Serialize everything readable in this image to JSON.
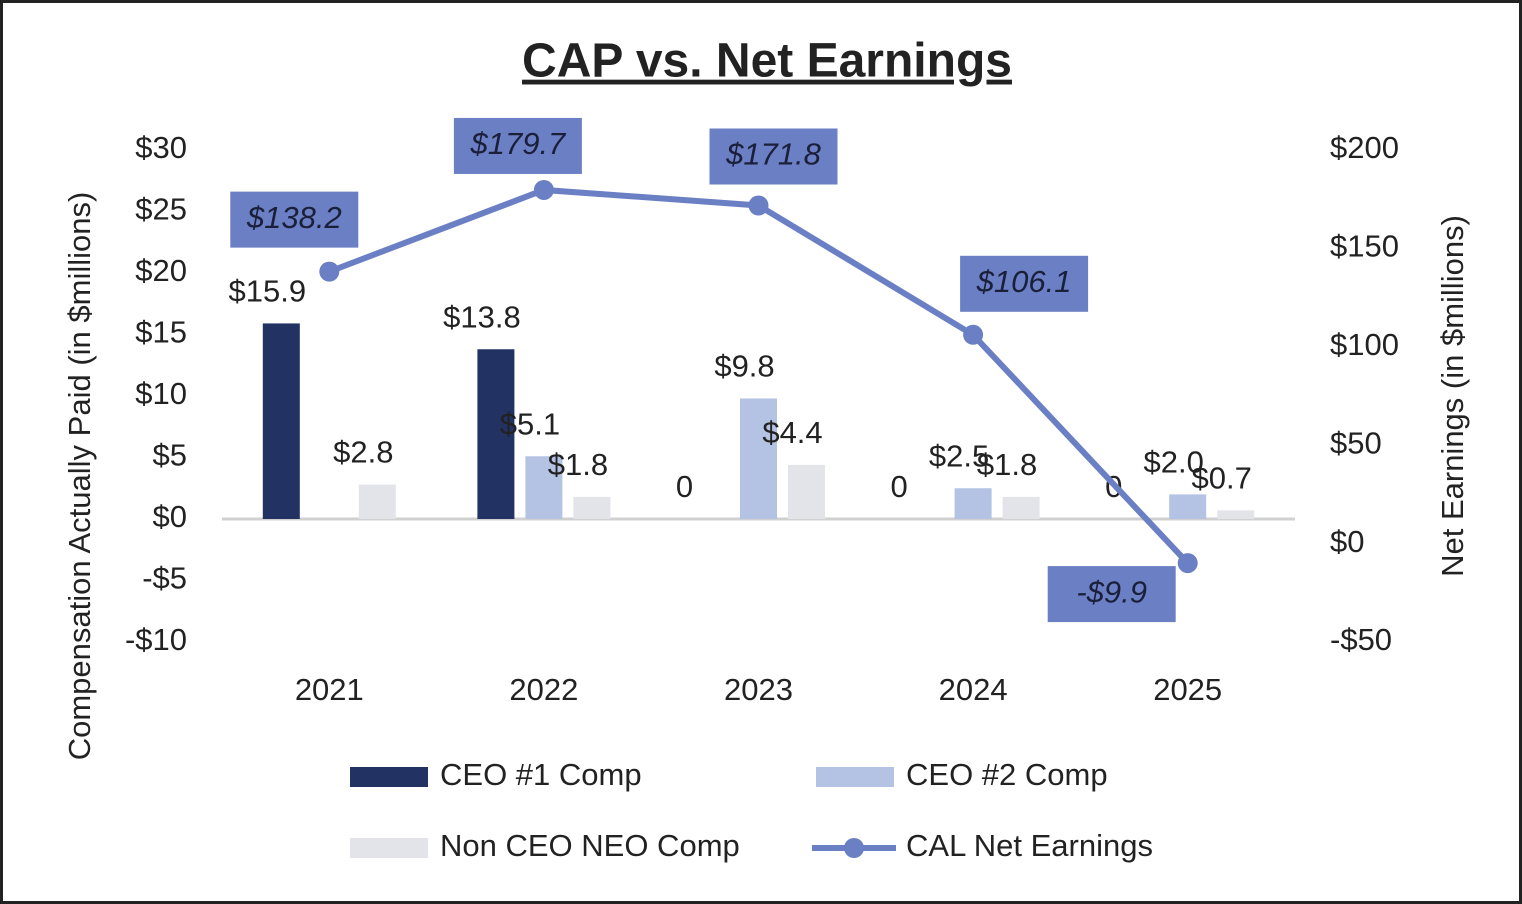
{
  "chart_data": {
    "type": "bar",
    "title": "CAP vs. Net Earnings",
    "y_label": "Compensation Actually Paid (in $millions)",
    "y2_label": "Net Earnings (in $millions)",
    "categories": [
      "2021",
      "2022",
      "2023",
      "2024",
      "2025"
    ],
    "ylim": [
      -10,
      30
    ],
    "yticks": [
      {
        "value": -10,
        "label": "-$10"
      },
      {
        "value": -5,
        "label": "-$5"
      },
      {
        "value": 0,
        "label": "$0"
      },
      {
        "value": 5,
        "label": "$5"
      },
      {
        "value": 10,
        "label": "$10"
      },
      {
        "value": 15,
        "label": "$15"
      },
      {
        "value": 20,
        "label": "$20"
      },
      {
        "value": 25,
        "label": "$25"
      },
      {
        "value": 30,
        "label": "$30"
      }
    ],
    "y2lim": [
      -50,
      200
    ],
    "y2ticks": [
      {
        "value": -50,
        "label": "-$50"
      },
      {
        "value": 0,
        "label": "$0"
      },
      {
        "value": 50,
        "label": "$50"
      },
      {
        "value": 100,
        "label": "$100"
      },
      {
        "value": 150,
        "label": "$150"
      },
      {
        "value": 200,
        "label": "$200"
      }
    ],
    "series": [
      {
        "name": "CEO #1 Comp",
        "type": "bar",
        "color": "#213263",
        "values": [
          15.9,
          13.8,
          0,
          0,
          0
        ],
        "value_labels": [
          "$15.9",
          "$13.8",
          "0",
          "0",
          "0"
        ]
      },
      {
        "name": "CEO #2 Comp",
        "type": "bar",
        "color": "#b4c2e3",
        "values": [
          null,
          5.1,
          9.8,
          2.5,
          2.0
        ],
        "value_labels": [
          null,
          "$5.1",
          "$9.8",
          "$2.5",
          "$2.0"
        ]
      },
      {
        "name": "Non CEO NEO Comp",
        "type": "bar",
        "color": "#e3e4ea",
        "values": [
          2.8,
          1.8,
          4.4,
          1.8,
          0.7
        ],
        "value_labels": [
          "$2.8",
          "$1.8",
          "$4.4",
          "$1.8",
          "$0.7"
        ]
      },
      {
        "name": "CAL Net Earnings",
        "type": "line",
        "axis": "y2",
        "color": "#6b7fc4",
        "values": [
          138.2,
          179.7,
          171.8,
          106.1,
          -9.9
        ],
        "value_labels": [
          "$138.2",
          "$179.7",
          "$171.8",
          "$106.1",
          "-$9.9"
        ]
      }
    ]
  }
}
